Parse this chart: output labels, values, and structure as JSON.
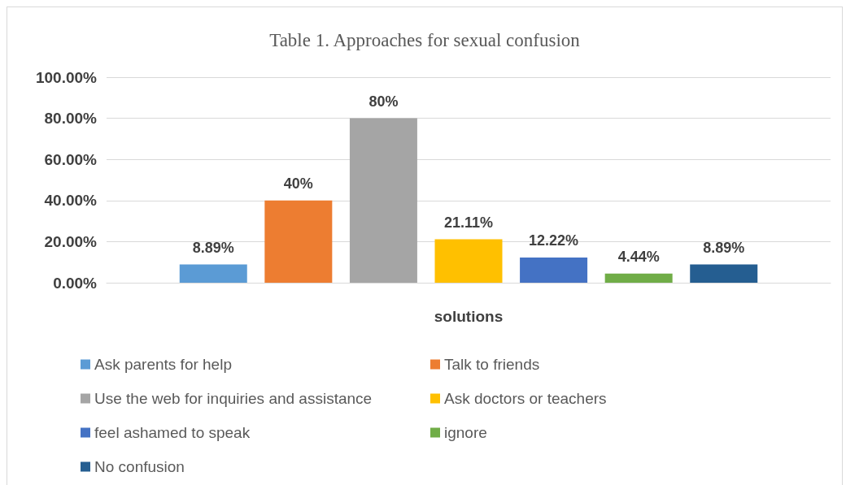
{
  "chart_data": {
    "type": "bar",
    "title": "Table 1. Approaches for sexual confusion",
    "xlabel": "solutions",
    "categories": [
      null
    ],
    "series": [
      {
        "name": "Ask parents for help",
        "color": "#5b9bd5",
        "values": [
          8.89
        ],
        "value_labels": [
          "8.89%"
        ]
      },
      {
        "name": "Talk to friends",
        "color": "#ed7d31",
        "values": [
          40
        ],
        "value_labels": [
          "40%"
        ]
      },
      {
        "name": "Use the web for inquiries and assistance",
        "color": "#a5a5a5",
        "values": [
          80
        ],
        "value_labels": [
          "80%"
        ]
      },
      {
        "name": "Ask doctors or teachers",
        "color": "#ffc000",
        "values": [
          21.11
        ],
        "value_labels": [
          "21.11%"
        ]
      },
      {
        "name": "feel ashamed to speak",
        "color": "#4472c4",
        "values": [
          12.22
        ],
        "value_labels": [
          "12.22%"
        ]
      },
      {
        "name": "ignore",
        "color": "#70ad47",
        "values": [
          4.44
        ],
        "value_labels": [
          "4.44%"
        ]
      },
      {
        "name": "No confusion",
        "color": "#255e91",
        "values": [
          8.89
        ],
        "value_labels": [
          "8.89%"
        ]
      }
    ],
    "ylim": [
      0,
      100
    ],
    "yticks": [
      {
        "value": 0,
        "label": "0.00%"
      },
      {
        "value": 20,
        "label": "20.00%"
      },
      {
        "value": 40,
        "label": "40.00%"
      },
      {
        "value": 60,
        "label": "60.00%"
      },
      {
        "value": 80,
        "label": "80.00%"
      },
      {
        "value": 100,
        "label": "100.00%"
      }
    ],
    "grid": "y",
    "legend": "bottom"
  }
}
